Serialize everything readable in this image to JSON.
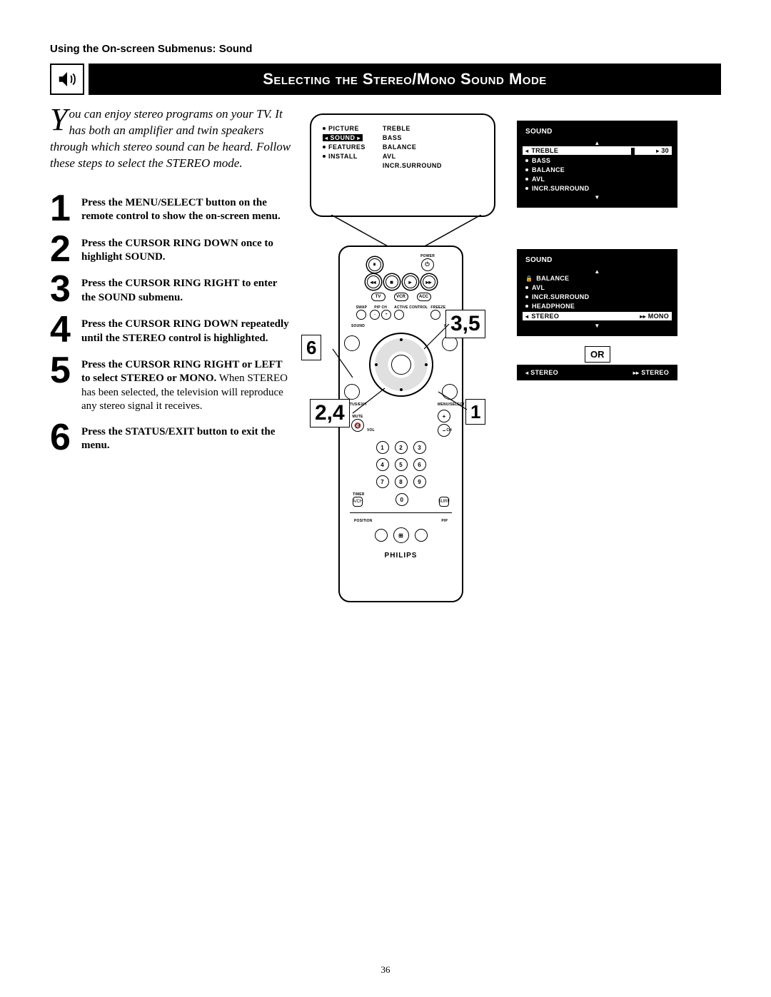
{
  "breadcrumb": "Using the On-screen Submenus: Sound",
  "title": "Selecting the Stereo/Mono Sound Mode",
  "intro_dropcap": "Y",
  "intro_rest": "ou can enjoy stereo programs on your TV. It has both an amplifier and twin speakers through which stereo sound can be heard. Follow these steps to select the STEREO mode.",
  "steps": [
    {
      "n": "1",
      "bold": "Press the MENU/SELECT button on the remote control to show the on-screen menu.",
      "rest": ""
    },
    {
      "n": "2",
      "bold": "Press the CURSOR RING DOWN once to highlight SOUND.",
      "rest": ""
    },
    {
      "n": "3",
      "bold": "Press the CURSOR RING RIGHT to enter the SOUND submenu.",
      "rest": ""
    },
    {
      "n": "4",
      "bold": "Press the CURSOR RING DOWN repeatedly until the STEREO control is highlighted.",
      "rest": ""
    },
    {
      "n": "5",
      "bold": "Press the CURSOR RING RIGHT or LEFT to select STEREO or MONO.",
      "rest": " When STEREO has been selected, the television will reproduce any stereo signal it receives."
    },
    {
      "n": "6",
      "bold": "Press the STATUS/EXIT button to exit the menu.",
      "rest": ""
    }
  ],
  "tv_menu": {
    "left": [
      {
        "label": "PICTURE",
        "hl": false
      },
      {
        "label": "SOUND",
        "hl": true
      },
      {
        "label": "FEATURES",
        "hl": false
      },
      {
        "label": "INSTALL",
        "hl": false
      }
    ],
    "right": [
      "TREBLE",
      "BASS",
      "BALANCE",
      "AVL",
      "INCR.SURROUND"
    ]
  },
  "osd1": {
    "title": "SOUND",
    "highlight": {
      "label": "TREBLE",
      "value": "30"
    },
    "items": [
      "BASS",
      "BALANCE",
      "AVL",
      "INCR.SURROUND"
    ]
  },
  "osd2": {
    "title": "SOUND",
    "items_top": [
      "BALANCE",
      "AVL",
      "INCR.SURROUND",
      "HEADPHONE"
    ],
    "highlight": {
      "left": "STEREO",
      "right": "MONO"
    },
    "alt": {
      "left": "STEREO",
      "right": "STEREO"
    }
  },
  "or_label": "OR",
  "callouts": {
    "c1": "1",
    "c24": "2,4",
    "c35": "3,5",
    "c6": "6"
  },
  "remote": {
    "brand": "PHILIPS",
    "labels": {
      "power": "POWER",
      "tv": "TV",
      "vcr": "VCR",
      "acc": "ACC",
      "swap": "SWAP",
      "pipch": "PIP CH",
      "active": "ACTIVE CONTROL",
      "freeze": "FREEZE",
      "ch_minus": "CH-",
      "ch_plus": "CH+",
      "sound": "SOUND",
      "pic": "PIC",
      "status": "STATUS/EXIT",
      "menu": "MENU/SELECT",
      "mute": "MUTE",
      "vol": "VOL",
      "ch": "CH",
      "timer": "TIMER",
      "aoff": "A/CH",
      "surf": "SURF",
      "position": "POSITION",
      "pip": "PIP"
    },
    "keypad": [
      "1",
      "2",
      "3",
      "4",
      "5",
      "6",
      "7",
      "8",
      "9",
      "0"
    ]
  },
  "page_number": "36"
}
